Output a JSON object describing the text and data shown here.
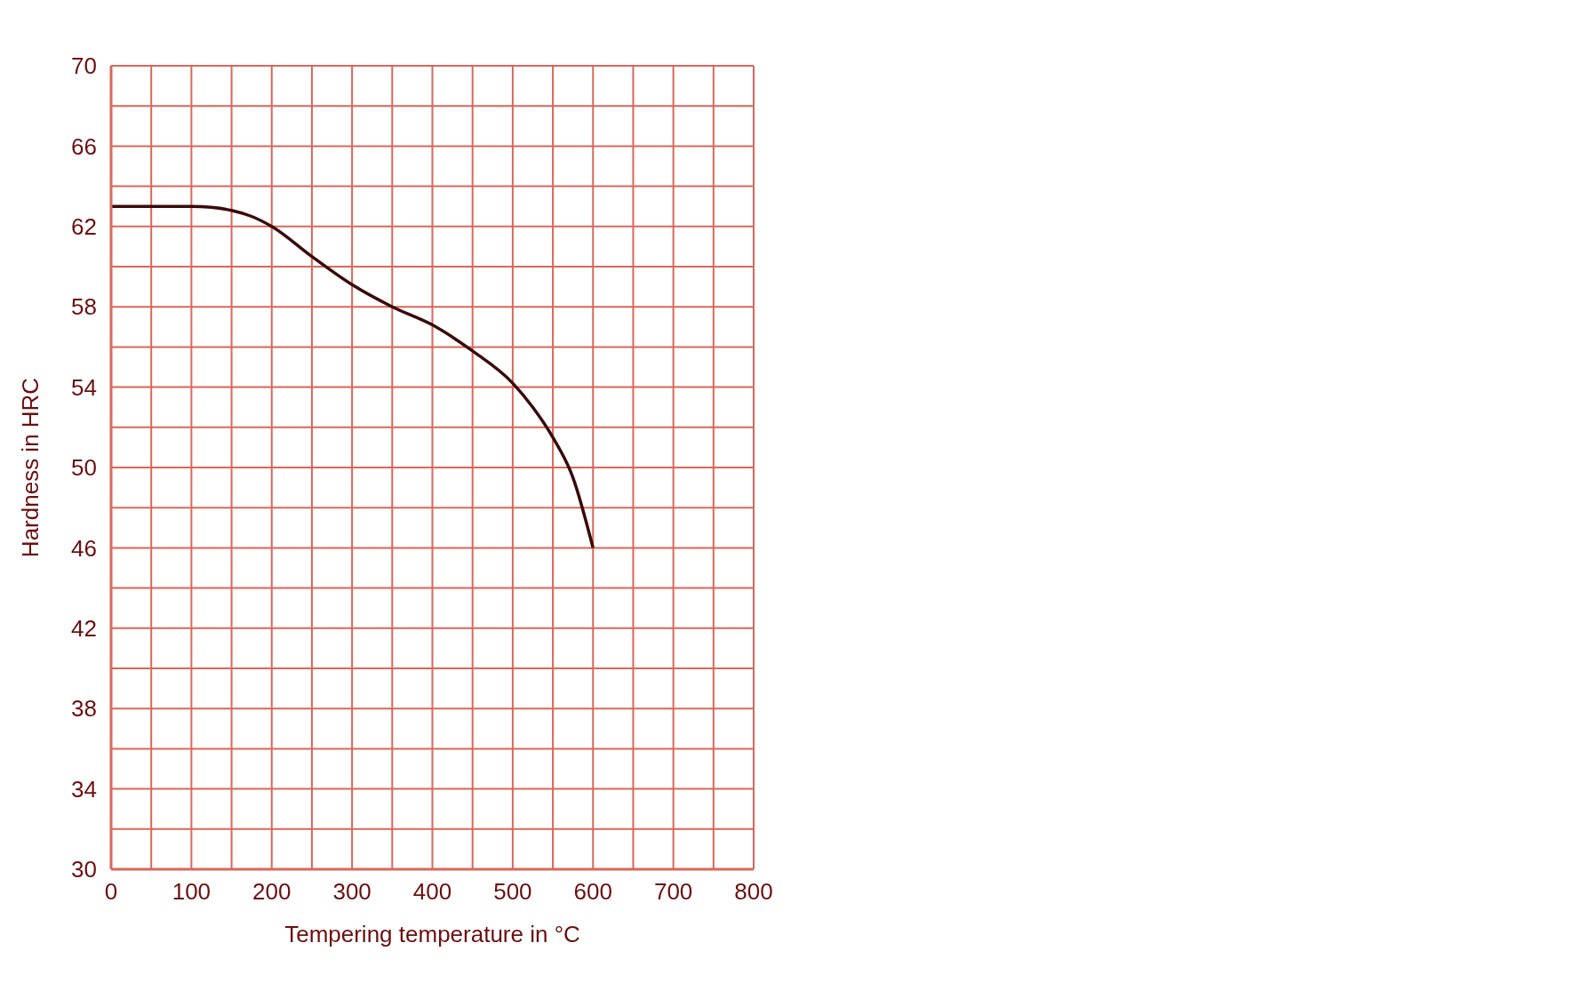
{
  "chart_data": {
    "type": "line",
    "xlabel": "Tempering temperature in °C",
    "ylabel": "Hardness in HRC",
    "x": [
      0,
      50,
      100,
      125,
      150,
      175,
      200,
      250,
      300,
      350,
      400,
      450,
      500,
      525,
      550,
      575,
      600
    ],
    "series": [
      {
        "color": "#3a0a0a",
        "values": [
          63,
          63,
          63,
          62.95,
          62.8,
          62.5,
          62,
          60.5,
          59.1,
          58,
          57.1,
          55.8,
          54.2,
          53,
          51.5,
          49.5,
          46
        ]
      }
    ],
    "xlim": [
      0,
      800
    ],
    "xticks": [
      0,
      {
        "value": 50,
        "label": null
      },
      100,
      {
        "value": 150,
        "label": null
      },
      200,
      {
        "value": 250,
        "label": null
      },
      300,
      {
        "value": 350,
        "label": null
      },
      400,
      {
        "value": 450,
        "label": null
      },
      500,
      {
        "value": 550,
        "label": null
      },
      600,
      {
        "value": 650,
        "label": null
      },
      700,
      {
        "value": 750,
        "label": null
      },
      800
    ],
    "ylim": [
      30,
      70
    ],
    "yticks": [
      30,
      {
        "value": 32,
        "label": null
      },
      34,
      {
        "value": 36,
        "label": null
      },
      38,
      {
        "value": 40,
        "label": null
      },
      42,
      {
        "value": 44,
        "label": null
      },
      46,
      {
        "value": 48,
        "label": null
      },
      50,
      {
        "value": 52,
        "label": null
      },
      54,
      {
        "value": 56,
        "label": null
      },
      58,
      {
        "value": 60,
        "label": null
      },
      62,
      {
        "value": 64,
        "label": null
      },
      66,
      {
        "value": 68,
        "label": null
      },
      70
    ],
    "grid": true,
    "marker": "none",
    "line_style": "solid",
    "legend": false
  }
}
